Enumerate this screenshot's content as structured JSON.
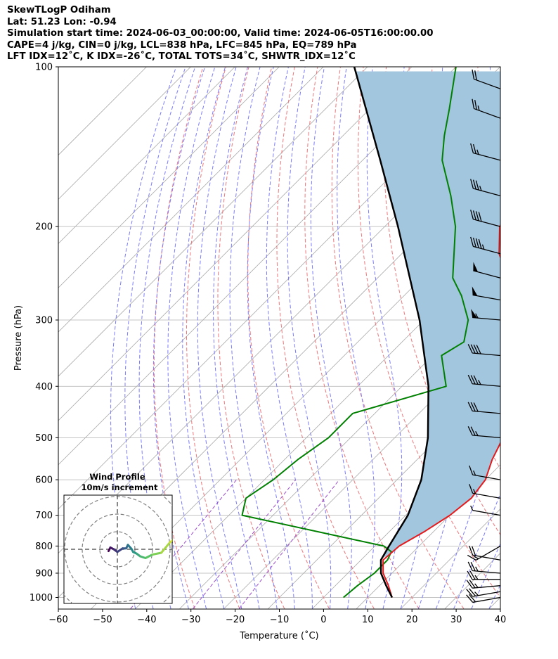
{
  "header": {
    "line1": "SkewTLogP Odiham",
    "line2": "Lat: 51.23   Lon: -0.94",
    "line3": "Simulation start time: 2024-06-03_00:00:00, Valid time: 2024-06-05T16:00:00.00",
    "line4": "CAPE=4 j/kg, CIN=0 j/kg, LCL=838 hPa, LFC=845 hPa, EQ=789 hPa",
    "line5": "LFT IDX=12˚C, K IDX=-26˚C, TOTAL TOTS=34˚C, SHWTR_IDX=12˚C"
  },
  "chart_data": {
    "type": "line",
    "xlabel": "Temperature (˚C)",
    "ylabel": "Pressure (hPa)",
    "xlim": [
      -60,
      40
    ],
    "ylim": [
      1050,
      100
    ],
    "y_scale": "log",
    "skew": "skew-T",
    "x_ticks": [
      -60,
      -50,
      -40,
      -30,
      -20,
      -10,
      0,
      10,
      20,
      30,
      40
    ],
    "y_ticks": [
      1000,
      900,
      800,
      700,
      600,
      500,
      400,
      300,
      200,
      100
    ],
    "series": [
      {
        "role": "temperature",
        "color": "#e41a1c",
        "points": [
          [
            1000,
            15.5
          ],
          [
            950,
            12
          ],
          [
            900,
            8
          ],
          [
            850,
            5
          ],
          [
            800,
            5.5
          ],
          [
            750,
            8
          ],
          [
            700,
            10
          ],
          [
            650,
            11
          ],
          [
            600,
            10
          ],
          [
            550,
            7
          ],
          [
            500,
            4.5
          ],
          [
            450,
            -0.5
          ],
          [
            400,
            -6
          ],
          [
            350,
            -12
          ],
          [
            300,
            -19
          ],
          [
            250,
            -30.5
          ],
          [
            225,
            -38
          ],
          [
            200,
            -44
          ],
          [
            175,
            -47
          ],
          [
            150,
            -52
          ],
          [
            125,
            -59
          ],
          [
            100,
            -64
          ]
        ]
      },
      {
        "role": "dewpoint",
        "color": "#008000",
        "points": [
          [
            1000,
            4.5
          ],
          [
            950,
            5
          ],
          [
            900,
            6
          ],
          [
            850,
            6
          ],
          [
            820,
            5
          ],
          [
            800,
            2
          ],
          [
            700,
            -37
          ],
          [
            650,
            -40
          ],
          [
            600,
            -38
          ],
          [
            550,
            -37
          ],
          [
            500,
            -35
          ],
          [
            450,
            -35
          ],
          [
            400,
            -20
          ],
          [
            350,
            -28
          ],
          [
            330,
            -26
          ],
          [
            300,
            -30
          ],
          [
            270,
            -37
          ],
          [
            250,
            -43
          ],
          [
            200,
            -54
          ],
          [
            175,
            -62
          ],
          [
            150,
            -72
          ],
          [
            135,
            -77
          ],
          [
            120,
            -82
          ],
          [
            100,
            -90
          ]
        ]
      },
      {
        "role": "parcel",
        "color": "#000000",
        "points": [
          [
            1000,
            15.5
          ],
          [
            950,
            11.5
          ],
          [
            900,
            7.5
          ],
          [
            850,
            4.5
          ],
          [
            838,
            4.2
          ],
          [
            800,
            3.2
          ],
          [
            700,
            0.5
          ],
          [
            600,
            -4.5
          ],
          [
            500,
            -12.5
          ],
          [
            400,
            -24
          ],
          [
            300,
            -41
          ],
          [
            200,
            -67
          ],
          [
            150,
            -86
          ],
          [
            100,
            -113
          ]
        ]
      }
    ],
    "winds": [
      {
        "p": 1000,
        "dir": 260,
        "speed": 20
      },
      {
        "p": 975,
        "dir": 260,
        "speed": 25
      },
      {
        "p": 950,
        "dir": 265,
        "speed": 25
      },
      {
        "p": 925,
        "dir": 270,
        "speed": 25
      },
      {
        "p": 900,
        "dir": 275,
        "speed": 25
      },
      {
        "p": 850,
        "dir": 280,
        "speed": 20
      },
      {
        "p": 800,
        "dir": 240,
        "speed": 15
      },
      {
        "p": 700,
        "dir": 280,
        "speed": 5
      },
      {
        "p": 650,
        "dir": 280,
        "speed": 15
      },
      {
        "p": 600,
        "dir": 280,
        "speed": 15
      },
      {
        "p": 500,
        "dir": 275,
        "speed": 25
      },
      {
        "p": 450,
        "dir": 275,
        "speed": 30
      },
      {
        "p": 400,
        "dir": 275,
        "speed": 35
      },
      {
        "p": 350,
        "dir": 275,
        "speed": 40
      },
      {
        "p": 300,
        "dir": 275,
        "speed": 55
      },
      {
        "p": 275,
        "dir": 280,
        "speed": 50
      },
      {
        "p": 250,
        "dir": 285,
        "speed": 50
      },
      {
        "p": 225,
        "dir": 285,
        "speed": 45
      },
      {
        "p": 200,
        "dir": 285,
        "speed": 40
      },
      {
        "p": 175,
        "dir": 285,
        "speed": 35
      },
      {
        "p": 150,
        "dir": 285,
        "speed": 25
      },
      {
        "p": 125,
        "dir": 290,
        "speed": 25
      },
      {
        "p": 110,
        "dir": 290,
        "speed": 20
      }
    ],
    "hodograph": {
      "title": "Wind Profile",
      "subtitle": "10m/s increment",
      "points": [
        [
          -5,
          -1
        ],
        [
          -4,
          1
        ],
        [
          -2,
          0
        ],
        [
          0,
          -1.5
        ],
        [
          3,
          0.5
        ],
        [
          5,
          0.5
        ],
        [
          6,
          2.5
        ],
        [
          8,
          0.3
        ],
        [
          9,
          -1.5
        ],
        [
          11,
          -2.5
        ],
        [
          13,
          -4
        ],
        [
          16,
          -5
        ],
        [
          20,
          -3
        ],
        [
          25,
          -2
        ],
        [
          30,
          4
        ],
        [
          35,
          8
        ],
        [
          38,
          10
        ]
      ]
    },
    "colors": {
      "cape_fill": "#a3c6df",
      "dry_adiabat": "#f0767a",
      "moist_adiabat": "#7b7bff",
      "mixing_ratio": "#9b4dca",
      "isotherm": "#a9a9a9",
      "isobar": "#b0b0b0"
    }
  }
}
